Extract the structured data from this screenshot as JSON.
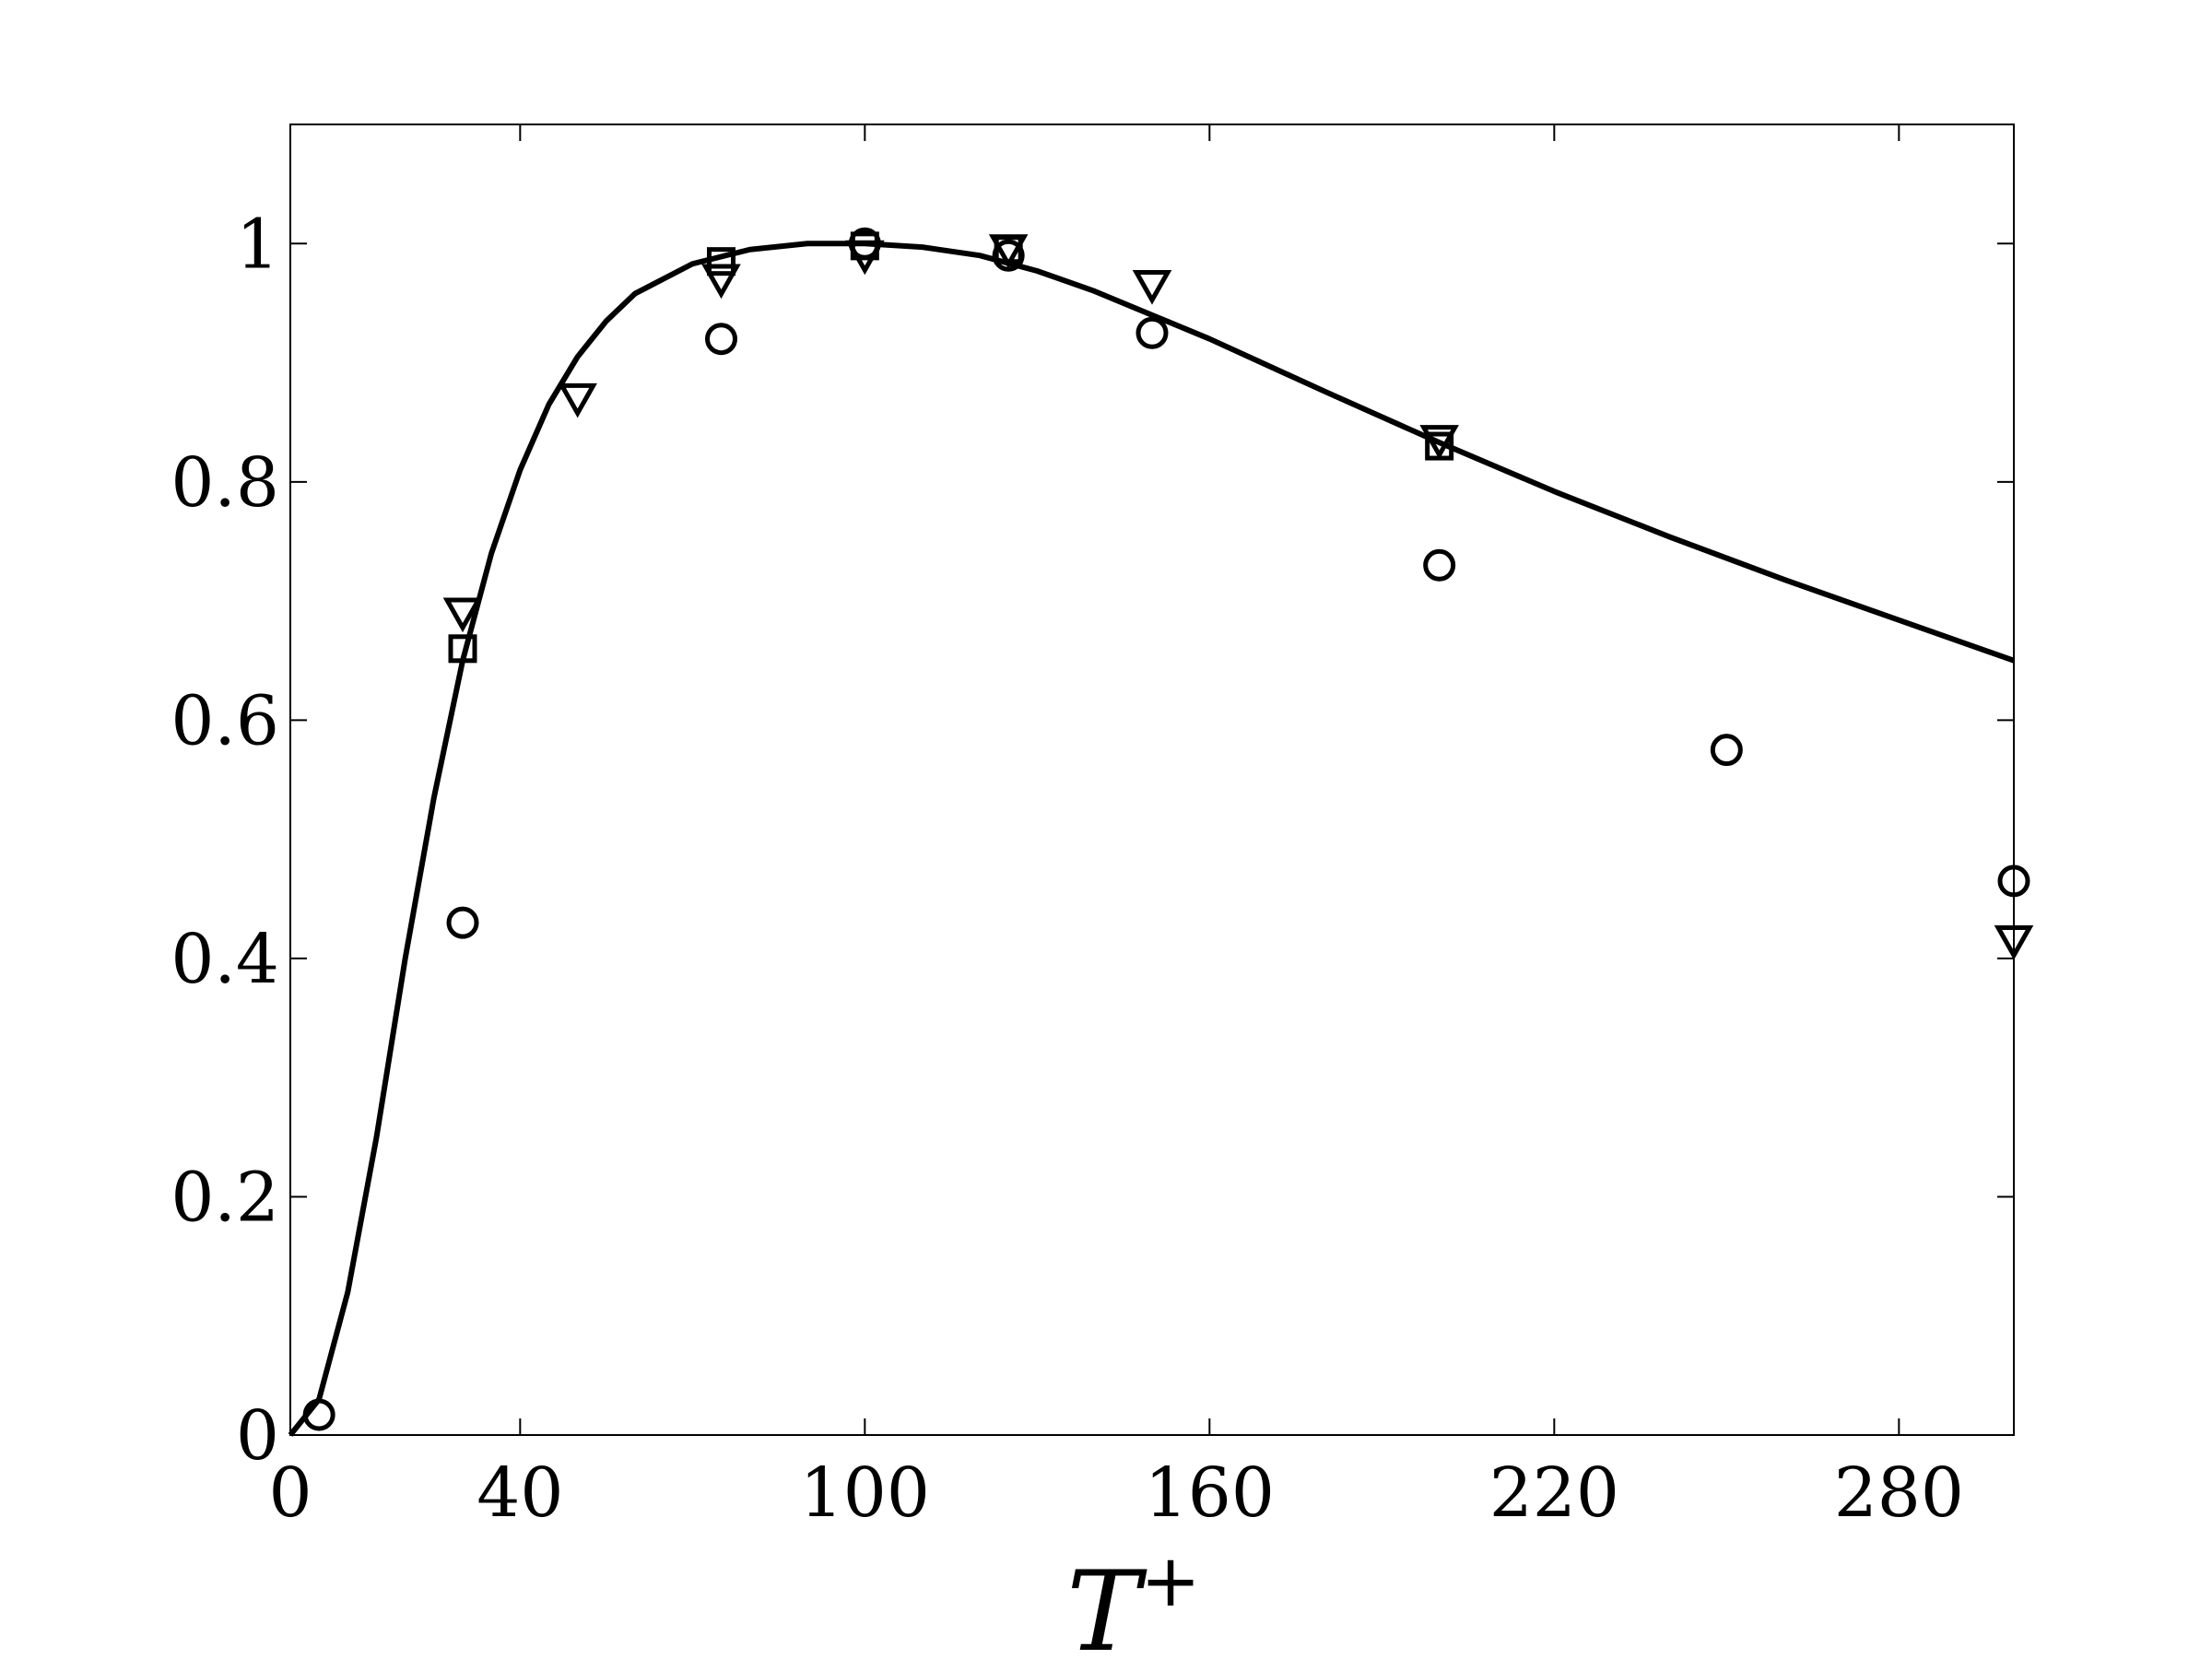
{
  "chart_data": {
    "type": "scatter",
    "xlabel": "T",
    "xlabel_superscript": "+",
    "ylabel": "",
    "xlim": [
      0,
      300
    ],
    "ylim": [
      0,
      1.1
    ],
    "xticks": [
      0,
      40,
      100,
      160,
      220,
      280
    ],
    "yticks": [
      0,
      0.2,
      0.4,
      0.6,
      0.8,
      1
    ],
    "xtick_labels": [
      "0",
      "40",
      "100",
      "160",
      "220",
      "280"
    ],
    "ytick_labels": [
      "0",
      "0.2",
      "0.4",
      "0.6",
      "0.8",
      "1"
    ],
    "grid": false,
    "legend": "none",
    "series": [
      {
        "kind": "line",
        "color": "#000000",
        "points": [
          [
            0,
            0
          ],
          [
            5,
            0.03
          ],
          [
            10,
            0.12
          ],
          [
            15,
            0.25
          ],
          [
            20,
            0.4
          ],
          [
            25,
            0.535
          ],
          [
            30,
            0.65
          ],
          [
            35,
            0.74
          ],
          [
            40,
            0.81
          ],
          [
            45,
            0.865
          ],
          [
            50,
            0.905
          ],
          [
            55,
            0.935
          ],
          [
            60,
            0.958
          ],
          [
            70,
            0.983
          ],
          [
            80,
            0.995
          ],
          [
            90,
            1.0
          ],
          [
            100,
            1.0
          ],
          [
            110,
            0.997
          ],
          [
            120,
            0.99
          ],
          [
            130,
            0.977
          ],
          [
            140,
            0.96
          ],
          [
            150,
            0.94
          ],
          [
            160,
            0.92
          ],
          [
            180,
            0.876
          ],
          [
            200,
            0.833
          ],
          [
            220,
            0.792
          ],
          [
            240,
            0.754
          ],
          [
            260,
            0.718
          ],
          [
            280,
            0.684
          ],
          [
            300,
            0.65
          ]
        ]
      },
      {
        "kind": "markers",
        "marker": "circle",
        "points": [
          [
            5,
            0.017
          ],
          [
            30,
            0.43
          ],
          [
            75,
            0.92
          ],
          [
            100,
            1.0
          ],
          [
            125,
            0.99
          ],
          [
            150,
            0.925
          ],
          [
            200,
            0.73
          ],
          [
            250,
            0.575
          ],
          [
            300,
            0.465
          ]
        ]
      },
      {
        "kind": "markers",
        "marker": "triangle-down",
        "points": [
          [
            30,
            0.69
          ],
          [
            50,
            0.87
          ],
          [
            75,
            0.97
          ],
          [
            100,
            0.99
          ],
          [
            125,
            0.995
          ],
          [
            150,
            0.965
          ],
          [
            200,
            0.835
          ],
          [
            300,
            0.415
          ]
        ]
      },
      {
        "kind": "markers",
        "marker": "square",
        "points": [
          [
            30,
            0.66
          ],
          [
            75,
            0.985
          ],
          [
            100,
            0.998
          ],
          [
            125,
            0.995
          ],
          [
            200,
            0.83
          ]
        ]
      }
    ]
  }
}
